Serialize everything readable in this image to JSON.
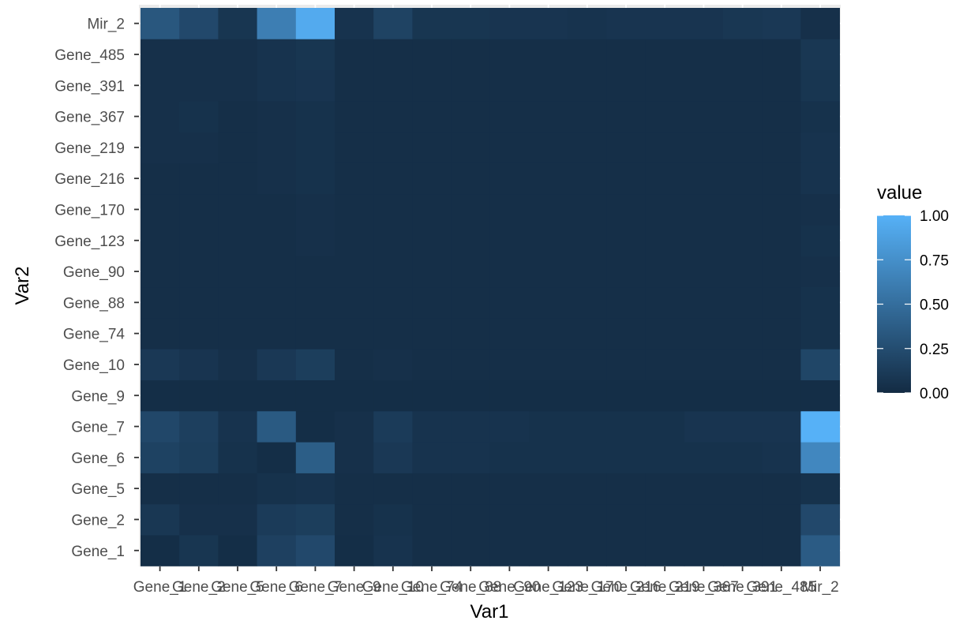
{
  "chart_data": {
    "type": "heatmap",
    "xlabel": "Var1",
    "ylabel": "Var2",
    "x_categories": [
      "Gene_1",
      "Gene_2",
      "Gene_5",
      "Gene_6",
      "Gene_7",
      "Gene_9",
      "Gene_10",
      "Gene_74",
      "Gene_88",
      "Gene_90",
      "Gene_123",
      "Gene_170",
      "Gene_216",
      "Gene_219",
      "Gene_367",
      "Gene_391",
      "Gene_485",
      "Mir_2"
    ],
    "y_categories": [
      "Gene_1",
      "Gene_2",
      "Gene_5",
      "Gene_6",
      "Gene_7",
      "Gene_9",
      "Gene_10",
      "Gene_74",
      "Gene_88",
      "Gene_90",
      "Gene_123",
      "Gene_170",
      "Gene_216",
      "Gene_219",
      "Gene_367",
      "Gene_391",
      "Gene_485",
      "Mir_2"
    ],
    "values": [
      [
        0.02,
        0.08,
        0.02,
        0.16,
        0.22,
        0.02,
        0.06,
        0.03,
        0.03,
        0.03,
        0.03,
        0.03,
        0.03,
        0.03,
        0.03,
        0.03,
        0.03,
        0.36
      ],
      [
        0.09,
        0.04,
        0.04,
        0.12,
        0.14,
        0.03,
        0.05,
        0.03,
        0.03,
        0.03,
        0.03,
        0.03,
        0.03,
        0.03,
        0.03,
        0.03,
        0.03,
        0.22
      ],
      [
        0.03,
        0.03,
        0.03,
        0.05,
        0.06,
        0.03,
        0.03,
        0.03,
        0.03,
        0.03,
        0.03,
        0.03,
        0.03,
        0.03,
        0.03,
        0.03,
        0.03,
        0.05
      ],
      [
        0.17,
        0.14,
        0.05,
        0.02,
        0.38,
        0.04,
        0.1,
        0.06,
        0.06,
        0.05,
        0.05,
        0.05,
        0.05,
        0.05,
        0.05,
        0.05,
        0.06,
        0.69
      ],
      [
        0.21,
        0.15,
        0.06,
        0.35,
        0.02,
        0.04,
        0.12,
        0.06,
        0.06,
        0.06,
        0.05,
        0.05,
        0.05,
        0.05,
        0.07,
        0.07,
        0.07,
        1.0
      ],
      [
        0.02,
        0.02,
        0.02,
        0.02,
        0.02,
        0.02,
        0.02,
        0.02,
        0.02,
        0.02,
        0.02,
        0.02,
        0.02,
        0.02,
        0.02,
        0.02,
        0.02,
        0.02
      ],
      [
        0.1,
        0.07,
        0.04,
        0.1,
        0.14,
        0.03,
        0.04,
        0.03,
        0.03,
        0.03,
        0.03,
        0.03,
        0.03,
        0.03,
        0.03,
        0.03,
        0.03,
        0.2
      ],
      [
        0.03,
        0.03,
        0.03,
        0.03,
        0.03,
        0.03,
        0.03,
        0.03,
        0.03,
        0.03,
        0.03,
        0.03,
        0.03,
        0.03,
        0.03,
        0.03,
        0.03,
        0.05
      ],
      [
        0.03,
        0.03,
        0.03,
        0.03,
        0.03,
        0.03,
        0.03,
        0.03,
        0.03,
        0.03,
        0.03,
        0.03,
        0.03,
        0.03,
        0.03,
        0.03,
        0.03,
        0.05
      ],
      [
        0.03,
        0.03,
        0.03,
        0.03,
        0.03,
        0.03,
        0.03,
        0.03,
        0.03,
        0.03,
        0.03,
        0.03,
        0.03,
        0.03,
        0.03,
        0.03,
        0.03,
        0.04
      ],
      [
        0.03,
        0.03,
        0.03,
        0.03,
        0.04,
        0.03,
        0.03,
        0.03,
        0.03,
        0.03,
        0.03,
        0.03,
        0.03,
        0.03,
        0.03,
        0.03,
        0.03,
        0.05
      ],
      [
        0.03,
        0.03,
        0.03,
        0.03,
        0.04,
        0.03,
        0.03,
        0.03,
        0.03,
        0.03,
        0.03,
        0.03,
        0.03,
        0.03,
        0.03,
        0.03,
        0.03,
        0.04
      ],
      [
        0.03,
        0.03,
        0.03,
        0.04,
        0.05,
        0.03,
        0.03,
        0.03,
        0.03,
        0.03,
        0.03,
        0.03,
        0.03,
        0.03,
        0.03,
        0.03,
        0.03,
        0.06
      ],
      [
        0.04,
        0.04,
        0.03,
        0.04,
        0.05,
        0.03,
        0.03,
        0.03,
        0.03,
        0.03,
        0.03,
        0.03,
        0.03,
        0.03,
        0.03,
        0.03,
        0.03,
        0.06
      ],
      [
        0.04,
        0.05,
        0.03,
        0.04,
        0.05,
        0.03,
        0.03,
        0.03,
        0.03,
        0.03,
        0.03,
        0.03,
        0.03,
        0.03,
        0.03,
        0.03,
        0.03,
        0.05
      ],
      [
        0.04,
        0.04,
        0.04,
        0.06,
        0.07,
        0.03,
        0.03,
        0.03,
        0.03,
        0.03,
        0.03,
        0.03,
        0.03,
        0.03,
        0.03,
        0.03,
        0.03,
        0.08
      ],
      [
        0.04,
        0.04,
        0.04,
        0.06,
        0.08,
        0.03,
        0.03,
        0.03,
        0.03,
        0.03,
        0.03,
        0.03,
        0.03,
        0.03,
        0.03,
        0.03,
        0.03,
        0.09
      ],
      [
        0.33,
        0.22,
        0.08,
        0.62,
        0.95,
        0.06,
        0.18,
        0.08,
        0.08,
        0.07,
        0.07,
        0.06,
        0.07,
        0.07,
        0.07,
        0.09,
        0.1,
        0.04
      ]
    ],
    "color_low": "#132b43",
    "color_high": "#56b1f7",
    "panel_background": "#ebebeb",
    "gridline_color": "#ffffff",
    "legend": {
      "title": "value",
      "position": "right",
      "breaks": [
        0,
        0.25,
        0.5,
        0.75,
        1
      ],
      "labels": [
        "0.00",
        "0.25",
        "0.50",
        "0.75",
        "1.00"
      ]
    }
  }
}
